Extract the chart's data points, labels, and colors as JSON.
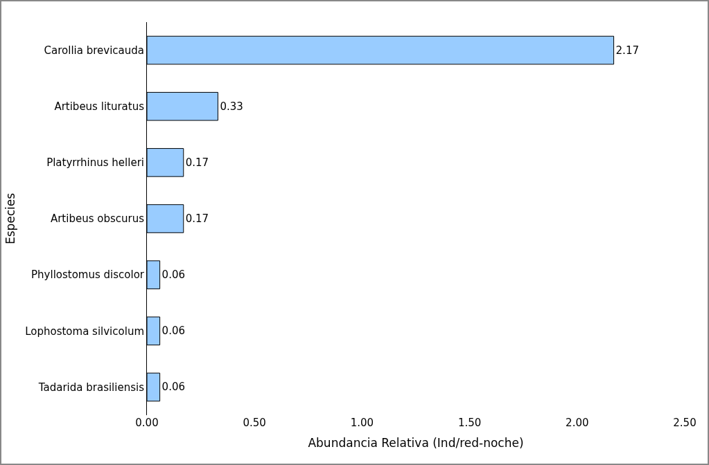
{
  "chart_data": {
    "type": "bar",
    "orientation": "horizontal",
    "xlabel": "Abundancia Relativa (Ind/red-noche)",
    "ylabel": "Especies",
    "categories": [
      "Carollia brevicauda",
      "Artibeus lituratus",
      "Platyrrhinus helleri",
      "Artibeus obscurus",
      "Phyllostomus discolor",
      "Lophostoma silvicolum",
      "Tadarida brasiliensis"
    ],
    "values": [
      2.17,
      0.33,
      0.17,
      0.17,
      0.06,
      0.06,
      0.06
    ],
    "color": "#99ccff",
    "data_labels": true,
    "grid": false,
    "xlim": [
      0,
      2.5
    ],
    "xticks": [
      {
        "value": 0,
        "label": "0.00"
      },
      {
        "value": 0.5,
        "label": "0.50"
      },
      {
        "value": 1,
        "label": "1.00"
      },
      {
        "value": 1.5,
        "label": "1.50"
      },
      {
        "value": 2,
        "label": "2.00"
      },
      {
        "value": 2.5,
        "label": "2.50"
      }
    ]
  }
}
